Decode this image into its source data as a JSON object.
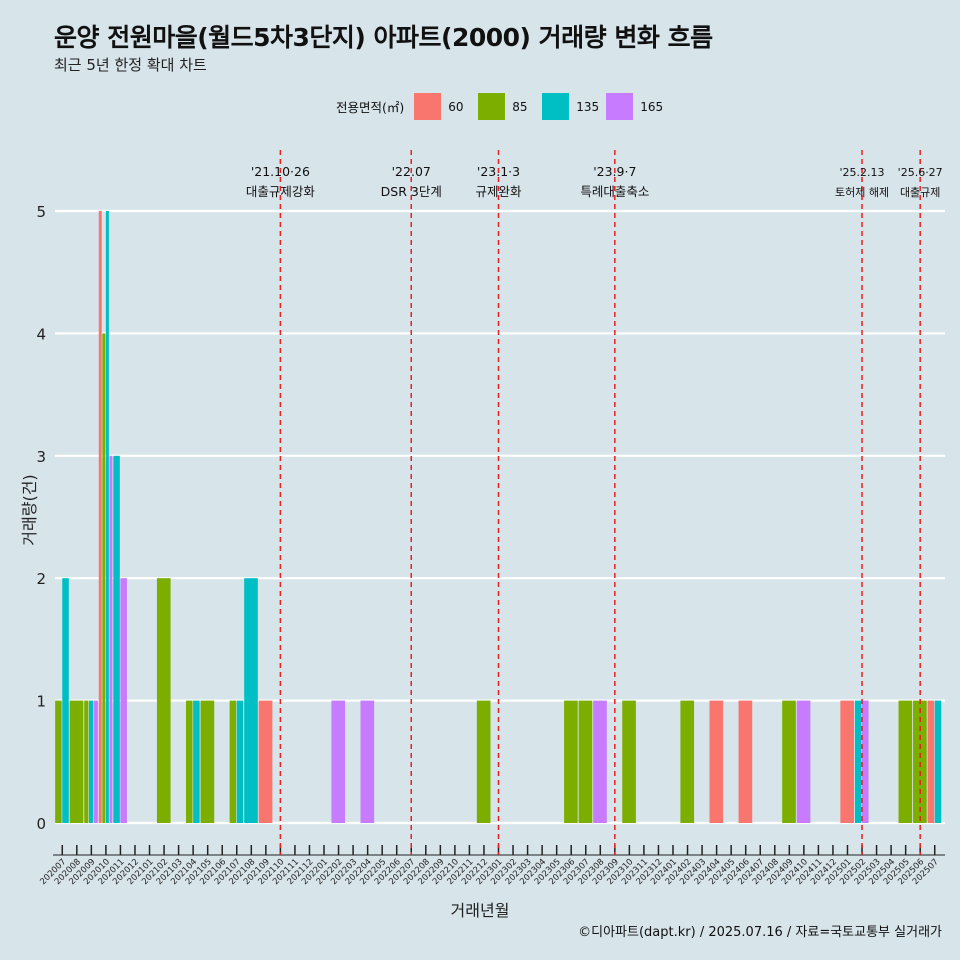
{
  "title": "운양 전원마을(월드5차3단지) 아파트(2000) 거래량 변화 흐름",
  "subtitle": "최근 5년 한정 확대 차트",
  "caption": "©디아파트(dapt.kr) / 2025.07.16 / 자료=국토교통부 실거래가",
  "legend_title": "전용면적(㎡)",
  "colors": {
    "60": "#f8766d",
    "85": "#7cae00",
    "135": "#00bfc4",
    "165": "#c77cff",
    "background": "#d7e4ea",
    "grid": "#ffffff",
    "event_line": "#e8201f"
  },
  "chart_data": {
    "type": "bar",
    "xlabel": "거래년월",
    "ylabel": "거래량(건)",
    "ylim": [
      0,
      5
    ],
    "y_ticks": [
      0,
      1,
      2,
      3,
      4,
      5
    ],
    "grid": true,
    "legend_position": "top",
    "categories": [
      "202007",
      "202008",
      "202009",
      "202010",
      "202011",
      "202012",
      "202101",
      "202102",
      "202103",
      "202104",
      "202105",
      "202106",
      "202107",
      "202108",
      "202109",
      "202110",
      "202111",
      "202112",
      "202201",
      "202202",
      "202203",
      "202204",
      "202205",
      "202206",
      "202207",
      "202208",
      "202209",
      "202210",
      "202211",
      "202212",
      "202301",
      "202302",
      "202303",
      "202304",
      "202305",
      "202306",
      "202307",
      "202308",
      "202309",
      "202310",
      "202311",
      "202312",
      "202401",
      "202402",
      "202403",
      "202404",
      "202405",
      "202406",
      "202407",
      "202408",
      "202409",
      "202410",
      "202411",
      "202412",
      "202501",
      "202502",
      "202503",
      "202504",
      "202505",
      "202506",
      "202507"
    ],
    "series": [
      {
        "name": "60",
        "values": [
          0,
          0,
          0,
          5,
          0,
          0,
          0,
          0,
          0,
          0,
          0,
          0,
          0,
          0,
          1,
          0,
          0,
          0,
          0,
          0,
          0,
          0,
          0,
          0,
          0,
          0,
          0,
          0,
          0,
          0,
          0,
          0,
          0,
          0,
          0,
          0,
          0,
          0,
          0,
          0,
          0,
          0,
          0,
          0,
          0,
          1,
          0,
          1,
          0,
          0,
          0,
          0,
          0,
          0,
          1,
          0,
          0,
          0,
          0,
          0,
          1
        ]
      },
      {
        "name": "85",
        "values": [
          1,
          1,
          1,
          4,
          0,
          0,
          0,
          2,
          0,
          1,
          1,
          0,
          1,
          0,
          0,
          0,
          0,
          0,
          0,
          0,
          0,
          0,
          0,
          0,
          0,
          0,
          0,
          0,
          0,
          1,
          0,
          0,
          0,
          0,
          0,
          1,
          1,
          0,
          0,
          1,
          0,
          0,
          0,
          1,
          0,
          0,
          0,
          0,
          0,
          0,
          1,
          0,
          0,
          0,
          0,
          0,
          0,
          0,
          1,
          1,
          0
        ]
      },
      {
        "name": "135",
        "values": [
          2,
          0,
          1,
          5,
          3,
          0,
          0,
          0,
          0,
          1,
          0,
          0,
          1,
          2,
          0,
          0,
          0,
          0,
          0,
          0,
          0,
          0,
          0,
          0,
          0,
          0,
          0,
          0,
          0,
          0,
          0,
          0,
          0,
          0,
          0,
          0,
          0,
          0,
          0,
          0,
          0,
          0,
          0,
          0,
          0,
          0,
          0,
          0,
          0,
          0,
          0,
          0,
          0,
          0,
          0,
          1,
          0,
          0,
          0,
          0,
          1
        ]
      },
      {
        "name": "165",
        "values": [
          0,
          0,
          1,
          3,
          2,
          0,
          0,
          0,
          0,
          0,
          0,
          0,
          0,
          0,
          0,
          0,
          0,
          0,
          0,
          1,
          0,
          1,
          0,
          0,
          0,
          0,
          0,
          0,
          0,
          0,
          0,
          0,
          0,
          0,
          0,
          0,
          0,
          1,
          0,
          0,
          0,
          0,
          0,
          0,
          0,
          0,
          0,
          0,
          0,
          0,
          0,
          1,
          0,
          0,
          0,
          1,
          0,
          0,
          0,
          0,
          0
        ]
      }
    ],
    "events": [
      {
        "at": "202110",
        "date": "'21.10·26",
        "label": "대출규제강화"
      },
      {
        "at": "202207",
        "date": "'22.07",
        "label": "DSR 3단계"
      },
      {
        "at": "202301",
        "date": "'23.1·3",
        "label": "규제완화"
      },
      {
        "at": "202309",
        "date": "'23.9·7",
        "label": "특례대출축소"
      },
      {
        "at": "202502",
        "date": "'25.2.13",
        "label": "토허제 해제"
      },
      {
        "at": "202506",
        "date": "'25.6·27",
        "label": "대출규제"
      }
    ]
  }
}
